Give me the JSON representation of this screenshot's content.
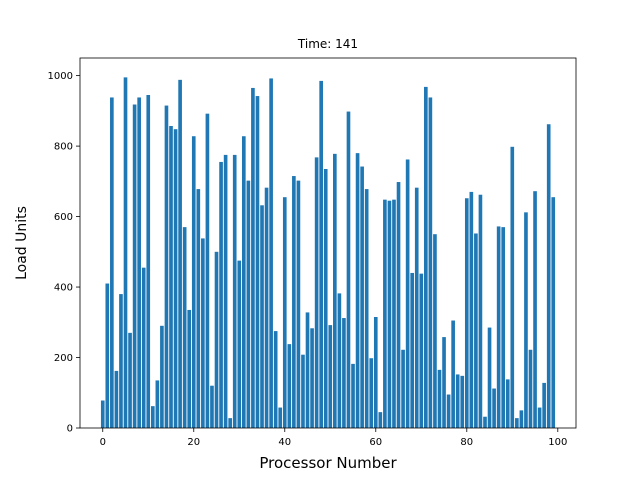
{
  "chart_data": {
    "type": "bar",
    "title": "Time: 141",
    "xlabel": "Processor Number",
    "ylabel": "Load Units",
    "xlim": [
      -5,
      104
    ],
    "ylim": [
      0,
      1050
    ],
    "xticks": [
      0,
      20,
      40,
      60,
      80,
      100
    ],
    "yticks": [
      0,
      200,
      400,
      600,
      800,
      1000
    ],
    "bar_color": "#1f77b4",
    "x": [
      0,
      1,
      2,
      3,
      4,
      5,
      6,
      7,
      8,
      9,
      10,
      11,
      12,
      13,
      14,
      15,
      16,
      17,
      18,
      19,
      20,
      21,
      22,
      23,
      24,
      25,
      26,
      27,
      28,
      29,
      30,
      31,
      32,
      33,
      34,
      35,
      36,
      37,
      38,
      39,
      40,
      41,
      42,
      43,
      44,
      45,
      46,
      47,
      48,
      49,
      50,
      51,
      52,
      53,
      54,
      55,
      56,
      57,
      58,
      59,
      60,
      61,
      62,
      63,
      64,
      65,
      66,
      67,
      68,
      69,
      70,
      71,
      72,
      73,
      74,
      75,
      76,
      77,
      78,
      79,
      80,
      81,
      82,
      83,
      84,
      85,
      86,
      87,
      88,
      89,
      90,
      91,
      92,
      93,
      94,
      95,
      96,
      97,
      98,
      99
    ],
    "values": [
      78,
      410,
      938,
      162,
      380,
      995,
      270,
      918,
      938,
      455,
      945,
      62,
      135,
      290,
      915,
      857,
      848,
      988,
      570,
      335,
      828,
      678,
      538,
      892,
      120,
      500,
      755,
      775,
      28,
      775,
      475,
      828,
      702,
      965,
      942,
      632,
      682,
      992,
      275,
      58,
      655,
      238,
      715,
      702,
      208,
      328,
      283,
      768,
      985,
      735,
      292,
      778,
      382,
      312,
      898,
      182,
      780,
      742,
      678,
      198,
      315,
      45,
      648,
      645,
      648,
      698,
      222,
      762,
      440,
      682,
      438,
      968,
      938,
      550,
      165,
      258,
      95,
      305,
      152,
      148,
      652,
      670,
      552,
      662,
      32,
      285,
      112,
      572,
      570,
      138,
      798,
      28,
      50,
      612,
      222,
      672,
      58,
      128,
      862,
      655
    ]
  }
}
